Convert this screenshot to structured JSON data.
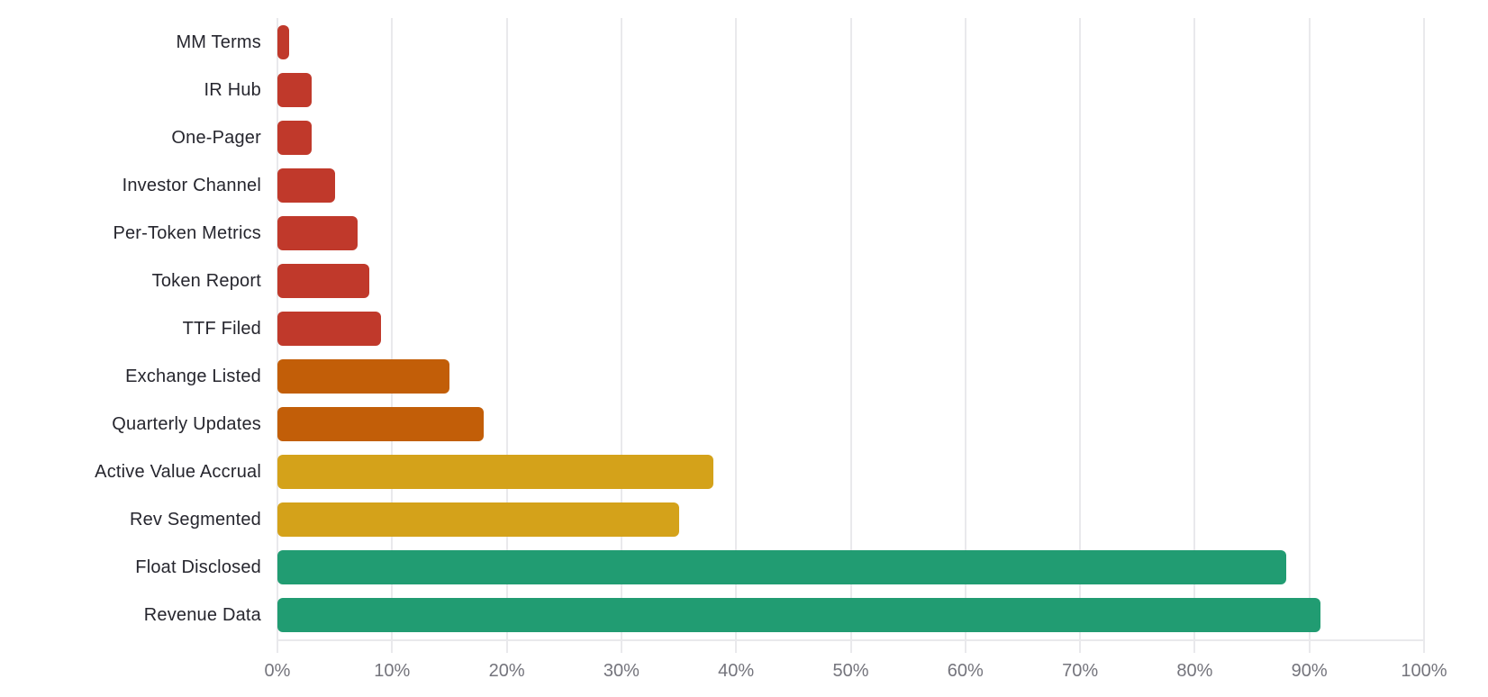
{
  "chart_data": {
    "type": "bar",
    "orientation": "horizontal",
    "title": "",
    "xlabel": "",
    "ylabel": "",
    "xlim": [
      0,
      100
    ],
    "grid": true,
    "legend": null,
    "x_tick_values": [
      0,
      10,
      20,
      30,
      40,
      50,
      60,
      70,
      80,
      90,
      100
    ],
    "x_tick_labels": [
      "0%",
      "10%",
      "20%",
      "30%",
      "40%",
      "50%",
      "60%",
      "70%",
      "80%",
      "90%",
      "100%"
    ],
    "categories": [
      "MM Terms",
      "IR Hub",
      "One-Pager",
      "Investor Channel",
      "Per-Token Metrics",
      "Token Report",
      "TTF Filed",
      "Exchange Listed",
      "Quarterly Updates",
      "Active Value Accrual",
      "Rev Segmented",
      "Float Disclosed",
      "Revenue Data"
    ],
    "values": [
      1,
      3,
      3,
      5,
      7,
      8,
      9,
      15,
      18,
      38,
      35,
      88,
      91
    ],
    "bar_colors": [
      "#c0392b",
      "#c0392b",
      "#c0392b",
      "#c0392b",
      "#c0392b",
      "#c0392b",
      "#c0392b",
      "#c25e08",
      "#c25e08",
      "#d4a21a",
      "#d4a21a",
      "#219c72",
      "#219c72"
    ],
    "unit": "%"
  }
}
